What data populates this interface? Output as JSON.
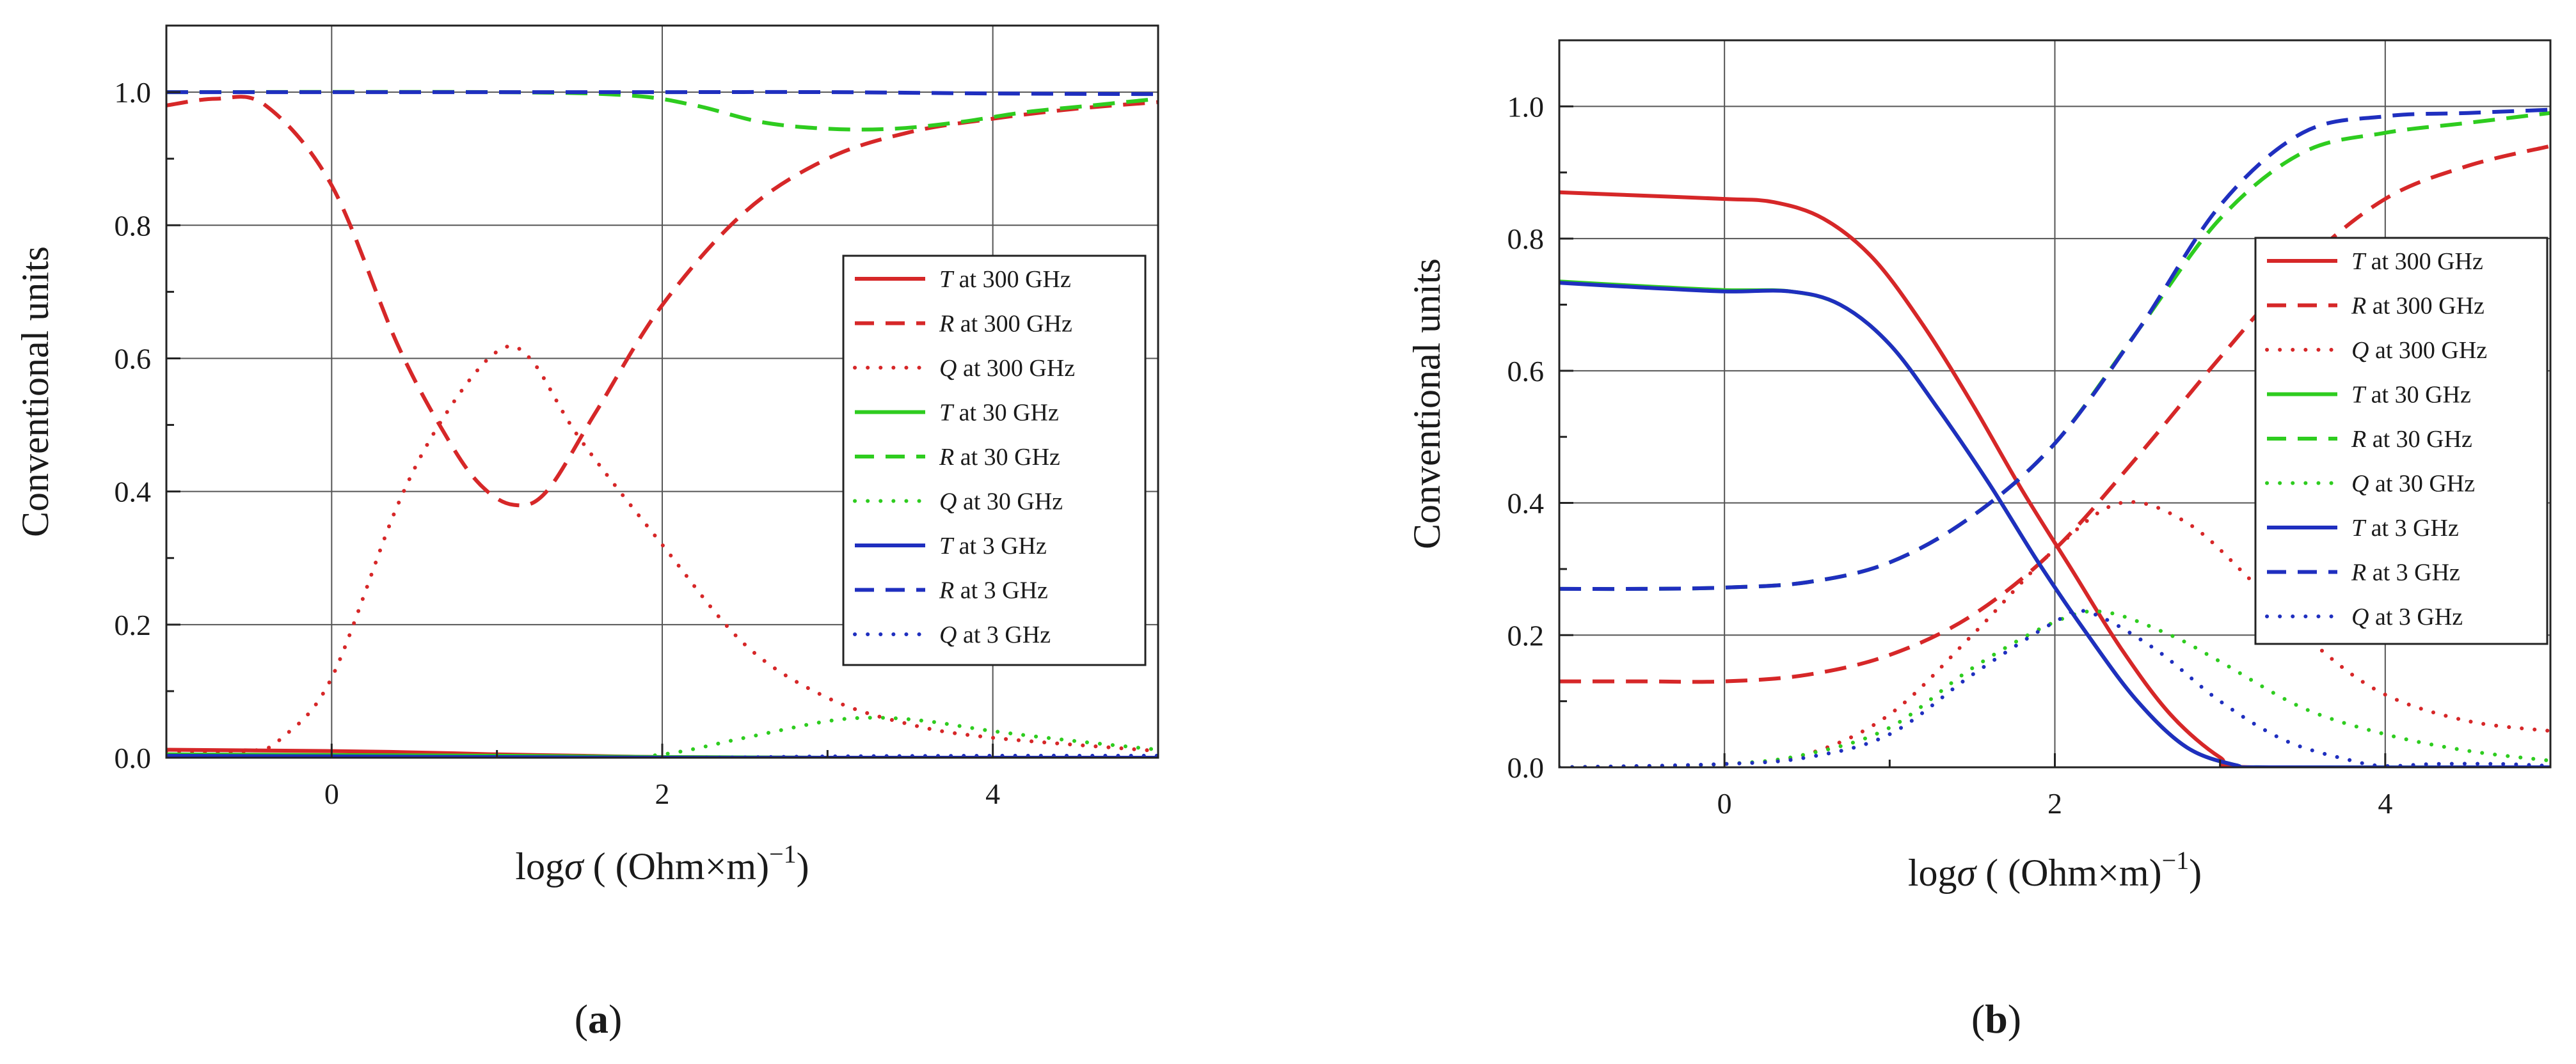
{
  "chart_data": [
    {
      "type": "line",
      "panel_label": "a",
      "ylabel": "Conventional units",
      "xlabel_prefix": "log",
      "xlabel_symbol": "σ",
      "xlabel_units": " ( (Ohm×m)",
      "xlabel_exponent": "−1",
      "xlabel_suffix": ")",
      "xlim": [
        -1,
        5
      ],
      "ylim": [
        0,
        1.1
      ],
      "xticks": [
        "0",
        "2",
        "4"
      ],
      "yticks": [
        "0.0",
        "0.2",
        "0.4",
        "0.6",
        "0.8",
        "1.0"
      ],
      "grid": true,
      "legend_position": "right-middle",
      "series": [
        {
          "name": "T at 300 GHz",
          "symbol": "T",
          "label": "at 300 GHz",
          "color": "#d62728",
          "dash": "solid",
          "x": [
            -1,
            0,
            0.5,
            1,
            1.5,
            2,
            3,
            4,
            5
          ],
          "y": [
            0.012,
            0.01,
            0.008,
            0.005,
            0.003,
            0.001,
            0,
            0,
            0
          ]
        },
        {
          "name": "R at 300 GHz",
          "symbol": "R",
          "label": "at 300 GHz",
          "color": "#d62728",
          "dash": "dashed",
          "x": [
            -1,
            -0.7,
            -0.4,
            0,
            0.4,
            0.7,
            0.9,
            1.1,
            1.3,
            1.6,
            2,
            2.5,
            3,
            3.5,
            4,
            4.5,
            5
          ],
          "y": [
            0.98,
            0.99,
            0.98,
            0.86,
            0.62,
            0.48,
            0.41,
            0.38,
            0.4,
            0.52,
            0.68,
            0.82,
            0.9,
            0.94,
            0.96,
            0.975,
            0.985
          ]
        },
        {
          "name": "Q at 300 GHz",
          "symbol": "Q",
          "label": "at 300 GHz",
          "color": "#d62728",
          "dash": "dotted",
          "x": [
            -1,
            -0.5,
            -0.3,
            0,
            0.4,
            0.7,
            1,
            1.2,
            1.5,
            2,
            2.5,
            3,
            3.5,
            4,
            5
          ],
          "y": [
            0.01,
            0.01,
            0.03,
            0.12,
            0.38,
            0.52,
            0.61,
            0.6,
            0.48,
            0.32,
            0.17,
            0.09,
            0.05,
            0.03,
            0.01
          ]
        },
        {
          "name": "T at 30 GHz",
          "symbol": "T",
          "label": "at 30 GHz",
          "color": "#2ecc1f",
          "dash": "solid",
          "x": [
            -1,
            1,
            2,
            3,
            4,
            5
          ],
          "y": [
            0.005,
            0.003,
            0.001,
            0,
            0,
            0
          ]
        },
        {
          "name": "R at 30 GHz",
          "symbol": "R",
          "label": "at 30 GHz",
          "color": "#2ecc1f",
          "dash": "dashed",
          "x": [
            -1,
            1,
            1.8,
            2.2,
            2.6,
            3,
            3.4,
            3.8,
            4.2,
            4.6,
            5
          ],
          "y": [
            1.0,
            1.0,
            0.995,
            0.98,
            0.955,
            0.945,
            0.945,
            0.955,
            0.97,
            0.98,
            0.99
          ]
        },
        {
          "name": "Q at 30 GHz",
          "symbol": "Q",
          "label": "at 30 GHz",
          "color": "#2ecc1f",
          "dash": "dotted",
          "x": [
            -1,
            1.5,
            2,
            2.5,
            3,
            3.3,
            3.6,
            4,
            4.5,
            5
          ],
          "y": [
            0,
            0,
            0.005,
            0.03,
            0.055,
            0.06,
            0.055,
            0.04,
            0.025,
            0.012
          ]
        },
        {
          "name": "T at 3 GHz",
          "symbol": "T",
          "label": "at 3 GHz",
          "color": "#1f2fbf",
          "dash": "solid",
          "x": [
            -1,
            0,
            1,
            2,
            3,
            5
          ],
          "y": [
            0.003,
            0.002,
            0.001,
            0,
            0,
            0
          ]
        },
        {
          "name": "R at 3 GHz",
          "symbol": "R",
          "label": "at 3 GHz",
          "color": "#1f2fbf",
          "dash": "dashed",
          "x": [
            -1,
            0,
            1,
            2,
            3,
            4,
            5
          ],
          "y": [
            1.0,
            1.0,
            1.0,
            1.0,
            1.0,
            0.998,
            0.997
          ]
        },
        {
          "name": "Q at 3 GHz",
          "symbol": "Q",
          "label": "at 3 GHz",
          "color": "#1f2fbf",
          "dash": "dotted",
          "x": [
            -1,
            2,
            3,
            4,
            5
          ],
          "y": [
            0,
            0,
            0.002,
            0.003,
            0.003
          ]
        }
      ]
    },
    {
      "type": "line",
      "panel_label": "b",
      "ylabel": "Conventional units",
      "xlabel_prefix": "log",
      "xlabel_symbol": "σ",
      "xlabel_units": " ( (Ohm×m)",
      "xlabel_exponent": "−1",
      "xlabel_suffix": ")",
      "xlim": [
        -1,
        5
      ],
      "ylim": [
        0,
        1.1
      ],
      "xticks": [
        "0",
        "2",
        "4"
      ],
      "yticks": [
        "0.0",
        "0.2",
        "0.4",
        "0.6",
        "0.8",
        "1.0"
      ],
      "grid": true,
      "legend_position": "right-middle",
      "series": [
        {
          "name": "T at 300 GHz",
          "symbol": "T",
          "label": "at 300 GHz",
          "color": "#d62728",
          "dash": "solid",
          "x": [
            -1,
            -0.5,
            0,
            0.3,
            0.6,
            0.9,
            1.2,
            1.5,
            1.8,
            2.1,
            2.4,
            2.7,
            3.0,
            3.2,
            5
          ],
          "y": [
            0.87,
            0.865,
            0.86,
            0.855,
            0.83,
            0.77,
            0.67,
            0.55,
            0.42,
            0.3,
            0.18,
            0.08,
            0.015,
            0,
            0
          ]
        },
        {
          "name": "R at 300 GHz",
          "symbol": "R",
          "label": "at 300 GHz",
          "color": "#d62728",
          "dash": "dashed",
          "x": [
            -1,
            -0.5,
            0,
            0.5,
            1,
            1.5,
            2,
            2.5,
            3,
            3.5,
            4,
            4.5,
            5
          ],
          "y": [
            0.13,
            0.13,
            0.13,
            0.14,
            0.17,
            0.23,
            0.33,
            0.47,
            0.62,
            0.76,
            0.86,
            0.91,
            0.94
          ]
        },
        {
          "name": "Q at 300 GHz",
          "symbol": "Q",
          "label": "at 300 GHz",
          "color": "#d62728",
          "dash": "dotted",
          "x": [
            -1,
            0,
            0.5,
            1,
            1.5,
            2,
            2.4,
            2.8,
            3.2,
            3.6,
            4,
            4.5,
            5
          ],
          "y": [
            0,
            0.005,
            0.02,
            0.08,
            0.2,
            0.33,
            0.4,
            0.37,
            0.28,
            0.18,
            0.11,
            0.07,
            0.055
          ]
        },
        {
          "name": "T at 30 GHz",
          "symbol": "T",
          "label": "at 30 GHz",
          "color": "#2ecc1f",
          "dash": "solid",
          "x": [
            -1,
            -0.5,
            0,
            0.4,
            0.7,
            1,
            1.3,
            1.6,
            1.9,
            2.2,
            2.5,
            2.8,
            3.1,
            3.3,
            5
          ],
          "y": [
            0.735,
            0.728,
            0.722,
            0.72,
            0.7,
            0.64,
            0.54,
            0.43,
            0.31,
            0.2,
            0.1,
            0.03,
            0.003,
            0,
            0
          ]
        },
        {
          "name": "R at 30 GHz",
          "symbol": "R",
          "label": "at 30 GHz",
          "color": "#2ecc1f",
          "dash": "dashed",
          "x": [
            -1,
            -0.5,
            0,
            0.5,
            1,
            1.5,
            2,
            2.5,
            3,
            3.5,
            4,
            4.5,
            5
          ],
          "y": [
            0.27,
            0.27,
            0.272,
            0.28,
            0.31,
            0.38,
            0.49,
            0.66,
            0.83,
            0.93,
            0.96,
            0.975,
            0.99
          ]
        },
        {
          "name": "Q at 30 GHz",
          "symbol": "Q",
          "label": "at 30 GHz",
          "color": "#2ecc1f",
          "dash": "dotted",
          "x": [
            -1,
            0,
            0.5,
            1,
            1.5,
            2,
            2.3,
            2.7,
            3,
            3.5,
            4,
            4.5,
            5
          ],
          "y": [
            0,
            0.005,
            0.02,
            0.06,
            0.15,
            0.22,
            0.235,
            0.2,
            0.16,
            0.09,
            0.05,
            0.025,
            0.01
          ]
        },
        {
          "name": "T at 3 GHz",
          "symbol": "T",
          "label": "at 3 GHz",
          "color": "#1f2fbf",
          "dash": "solid",
          "x": [
            -1,
            -0.5,
            0,
            0.4,
            0.7,
            1,
            1.3,
            1.6,
            1.9,
            2.2,
            2.5,
            2.8,
            3.1,
            3.3,
            5
          ],
          "y": [
            0.733,
            0.726,
            0.72,
            0.72,
            0.7,
            0.64,
            0.54,
            0.43,
            0.31,
            0.2,
            0.1,
            0.03,
            0.003,
            0,
            0
          ]
        },
        {
          "name": "R at 3 GHz",
          "symbol": "R",
          "label": "at 3 GHz",
          "color": "#1f2fbf",
          "dash": "dashed",
          "x": [
            -1,
            -0.5,
            0,
            0.5,
            1,
            1.5,
            2,
            2.5,
            3,
            3.5,
            4,
            4.5,
            5
          ],
          "y": [
            0.27,
            0.27,
            0.272,
            0.28,
            0.31,
            0.38,
            0.49,
            0.66,
            0.85,
            0.96,
            0.985,
            0.99,
            0.995
          ]
        },
        {
          "name": "Q at 3 GHz",
          "symbol": "Q",
          "label": "at 3 GHz",
          "color": "#1f2fbf",
          "dash": "dotted",
          "x": [
            -1,
            0,
            0.5,
            1,
            1.5,
            2,
            2.2,
            2.6,
            3,
            3.4,
            3.8,
            4,
            4.3,
            4.7,
            5
          ],
          "y": [
            0,
            0.005,
            0.015,
            0.05,
            0.14,
            0.22,
            0.235,
            0.18,
            0.1,
            0.04,
            0.01,
            0.002,
            0.005,
            0.005,
            0.002
          ]
        }
      ]
    }
  ]
}
